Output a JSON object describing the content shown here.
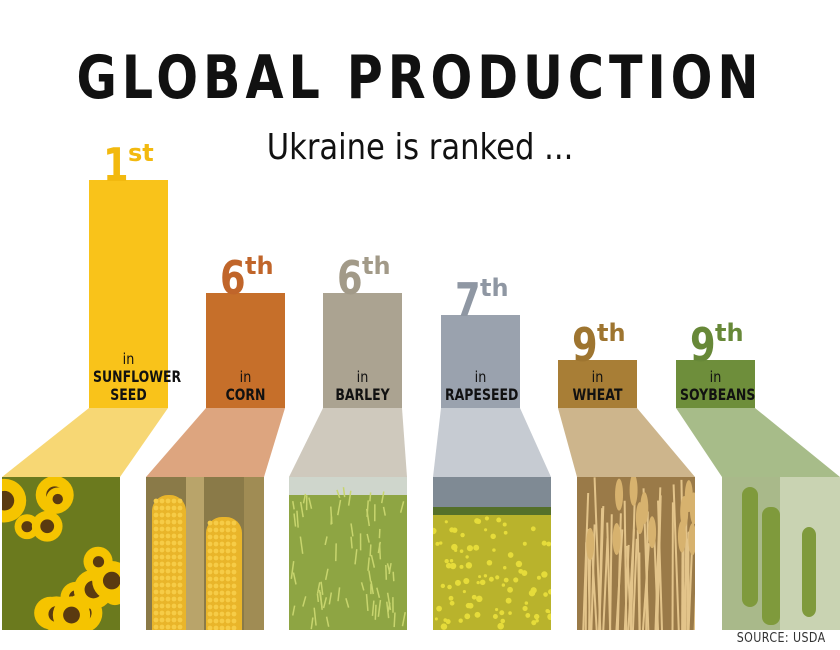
{
  "title": "GLOBAL PRODUCTION",
  "subtitle": "Ukraine is ranked  ...",
  "source": "SOURCE: USDA",
  "chart_data": {
    "type": "bar",
    "title": "GLOBAL PRODUCTION",
    "subtitle": "Ukraine is ranked  ...",
    "categories": [
      "SUNFLOWER SEED",
      "CORN",
      "BARLEY",
      "RAPESEED",
      "WHEAT",
      "SOYBEANS"
    ],
    "values": [
      1,
      6,
      6,
      7,
      9,
      9
    ],
    "items": [
      {
        "rank": 1,
        "rank_num": "1",
        "rank_suffix": "st",
        "in": "in",
        "name_lines": [
          "SUNFLOWER",
          "SEED"
        ],
        "color": "#F9C31A",
        "rank_color": "#F2B90F",
        "ramp_color": "#F7D774"
      },
      {
        "rank": 6,
        "rank_num": "6",
        "rank_suffix": "th",
        "in": "in",
        "name_lines": [
          "CORN"
        ],
        "color": "#C66F2A",
        "rank_color": "#C0652A",
        "ramp_color": "#DDA57F"
      },
      {
        "rank": 6,
        "rank_num": "6",
        "rank_suffix": "th",
        "in": "in",
        "name_lines": [
          "BARLEY"
        ],
        "color": "#ABA391",
        "rank_color": "#A29A88",
        "ramp_color": "#CFC9BD"
      },
      {
        "rank": 7,
        "rank_num": "7",
        "rank_suffix": "th",
        "in": "in",
        "name_lines": [
          "RAPESEED"
        ],
        "color": "#9AA2AE",
        "rank_color": "#8F97A3",
        "ramp_color": "#C6CBD2"
      },
      {
        "rank": 9,
        "rank_num": "9",
        "rank_suffix": "th",
        "in": "in",
        "name_lines": [
          "WHEAT"
        ],
        "color": "#A87E36",
        "rank_color": "#9E7530",
        "ramp_color": "#CDB58C"
      },
      {
        "rank": 9,
        "rank_num": "9",
        "rank_suffix": "th",
        "in": "in",
        "name_lines": [
          "SOYBEANS"
        ],
        "color": "#6E8E3B",
        "rank_color": "#678838",
        "ramp_color": "#A7BC89"
      }
    ],
    "photos": [
      "sunflower",
      "corn",
      "barley",
      "rapeseed",
      "wheat",
      "soybeans"
    ],
    "xlabel": "",
    "ylabel": "",
    "grid": false,
    "legend": "none"
  }
}
